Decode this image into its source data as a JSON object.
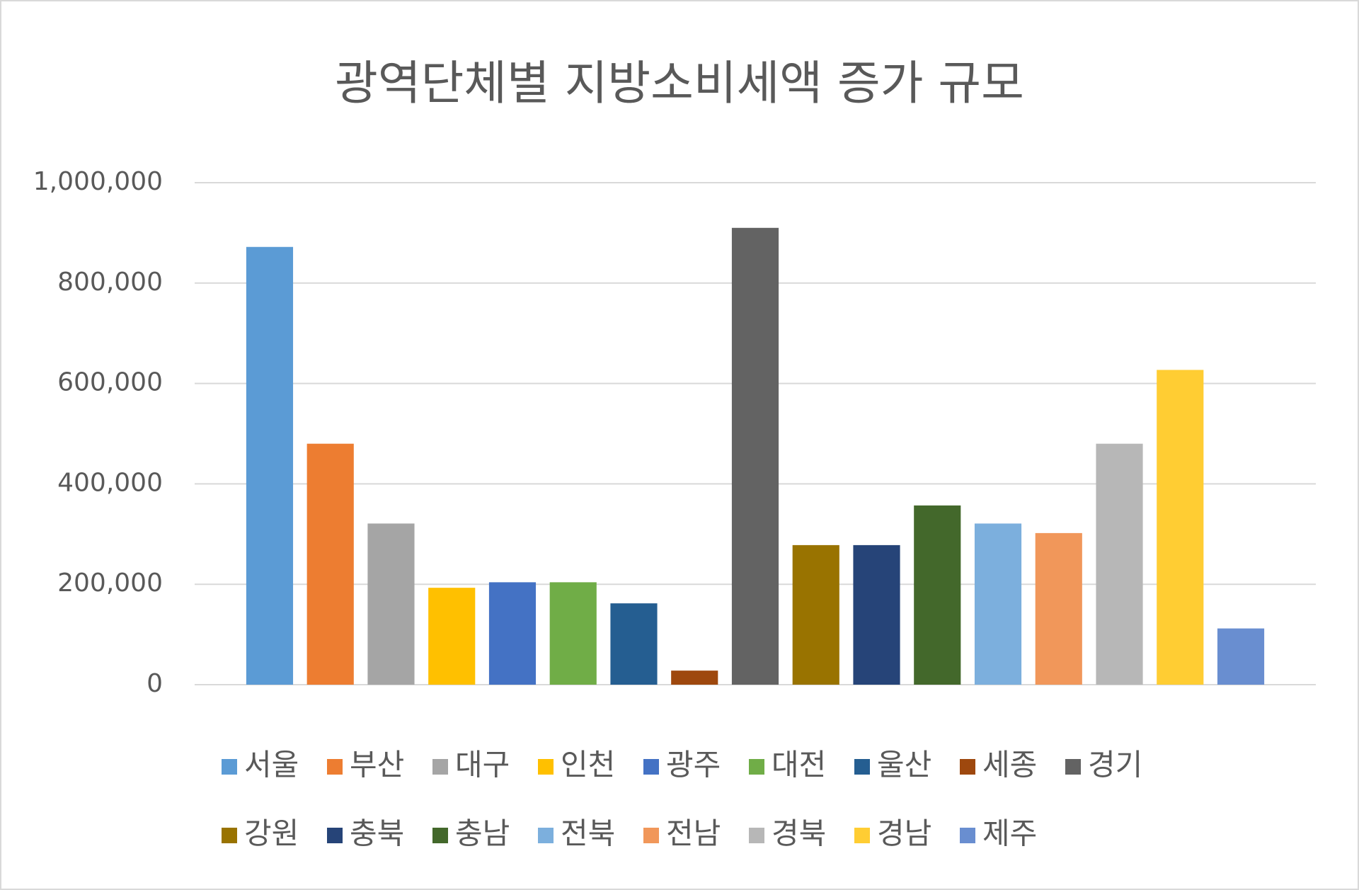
{
  "chart_data": {
    "type": "bar",
    "title": "광역단체별 지방소비세액 증가 규모",
    "categories": [
      null
    ],
    "series": [
      {
        "name": "서울",
        "color": "#5b9bd5",
        "values": [
          872000
        ]
      },
      {
        "name": "부산",
        "color": "#ed7d31",
        "values": [
          480000
        ]
      },
      {
        "name": "대구",
        "color": "#a5a5a5",
        "values": [
          321000
        ]
      },
      {
        "name": "인천",
        "color": "#ffc000",
        "values": [
          193000
        ]
      },
      {
        "name": "광주",
        "color": "#4472c4",
        "values": [
          204000
        ]
      },
      {
        "name": "대전",
        "color": "#70ad47",
        "values": [
          204000
        ]
      },
      {
        "name": "울산",
        "color": "#255e91",
        "values": [
          162000
        ]
      },
      {
        "name": "세종",
        "color": "#9e480e",
        "values": [
          28000
        ]
      },
      {
        "name": "경기",
        "color": "#636363",
        "values": [
          910000
        ]
      },
      {
        "name": "강원",
        "color": "#997300",
        "values": [
          278000
        ]
      },
      {
        "name": "충북",
        "color": "#264478",
        "values": [
          278000
        ]
      },
      {
        "name": "충남",
        "color": "#43682b",
        "values": [
          357000
        ]
      },
      {
        "name": "전북",
        "color": "#7cafdd",
        "values": [
          321000
        ]
      },
      {
        "name": "전남",
        "color": "#f1975a",
        "values": [
          302000
        ]
      },
      {
        "name": "경북",
        "color": "#b7b7b7",
        "values": [
          480000
        ]
      },
      {
        "name": "경남",
        "color": "#ffcd33",
        "values": [
          627000
        ]
      },
      {
        "name": "제주",
        "color": "#698ed0",
        "values": [
          112000
        ]
      }
    ],
    "ylim": [
      0,
      1000000
    ],
    "yticks": [
      0,
      {
        "value": 200000,
        "label": "200,000"
      },
      {
        "value": 400000,
        "label": "400,000"
      },
      {
        "value": 600000,
        "label": "600,000"
      },
      {
        "value": 800000,
        "label": "800,000"
      },
      {
        "value": 1000000,
        "label": "1,000,000"
      }
    ],
    "grid": true,
    "legend": "bottom"
  }
}
